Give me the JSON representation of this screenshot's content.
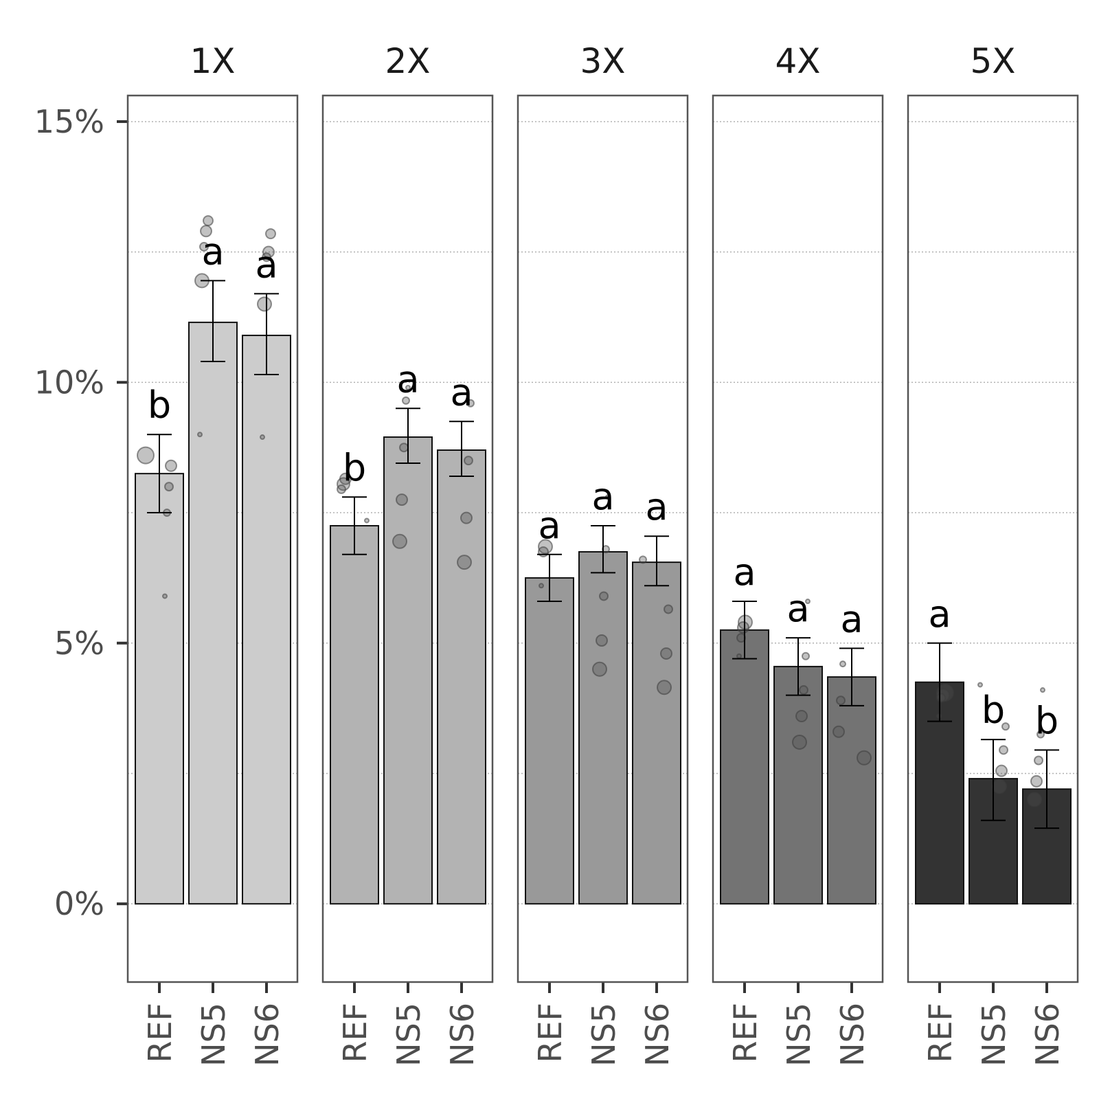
{
  "chart_data": {
    "type": "bar",
    "y_axis": {
      "ylim": [
        -1.5,
        15.5
      ],
      "ticks": [
        0,
        5,
        10,
        15
      ],
      "tick_labels": [
        "0%",
        "5%",
        "10%",
        "15%"
      ],
      "minor_gridlines": [
        2.5,
        7.5,
        12.5
      ]
    },
    "categories": [
      "REF",
      "NS5",
      "NS6"
    ],
    "grid": "horizontal dotted",
    "panels": [
      {
        "title": "1X",
        "fill": "#cccccc",
        "bars": [
          {
            "category": "REF",
            "value": 8.25,
            "err_low": 7.5,
            "err_high": 9.0,
            "letter": "b",
            "points": [
              {
                "y": 8.6,
                "s": 12
              },
              {
                "y": 8.4,
                "s": 8
              },
              {
                "y": 8.0,
                "s": 6
              },
              {
                "y": 7.5,
                "s": 5
              },
              {
                "y": 5.9,
                "s": 3
              }
            ]
          },
          {
            "category": "NS5",
            "value": 11.15,
            "err_low": 10.4,
            "err_high": 11.95,
            "letter": "a",
            "points": [
              {
                "y": 13.1,
                "s": 7
              },
              {
                "y": 12.9,
                "s": 8
              },
              {
                "y": 12.6,
                "s": 6
              },
              {
                "y": 11.95,
                "s": 10
              },
              {
                "y": 9.0,
                "s": 3
              }
            ]
          },
          {
            "category": "NS6",
            "value": 10.9,
            "err_low": 10.15,
            "err_high": 11.7,
            "letter": "a",
            "points": [
              {
                "y": 12.85,
                "s": 7
              },
              {
                "y": 12.5,
                "s": 8
              },
              {
                "y": 12.4,
                "s": 6
              },
              {
                "y": 11.5,
                "s": 10
              },
              {
                "y": 8.95,
                "s": 3
              }
            ]
          }
        ]
      },
      {
        "title": "2X",
        "fill": "#b3b3b3",
        "bars": [
          {
            "category": "REF",
            "value": 7.25,
            "err_low": 6.7,
            "err_high": 7.8,
            "letter": "b",
            "points": [
              {
                "y": 8.15,
                "s": 8
              },
              {
                "y": 8.05,
                "s": 9
              },
              {
                "y": 7.95,
                "s": 6
              },
              {
                "y": 7.35,
                "s": 3
              }
            ]
          },
          {
            "category": "NS5",
            "value": 8.95,
            "err_low": 8.45,
            "err_high": 9.5,
            "letter": "a",
            "points": [
              {
                "y": 9.9,
                "s": 3
              },
              {
                "y": 9.65,
                "s": 5
              },
              {
                "y": 8.75,
                "s": 6
              },
              {
                "y": 7.75,
                "s": 8
              },
              {
                "y": 6.95,
                "s": 10
              }
            ]
          },
          {
            "category": "NS6",
            "value": 8.7,
            "err_low": 8.2,
            "err_high": 9.25,
            "letter": "a",
            "points": [
              {
                "y": 9.6,
                "s": 5
              },
              {
                "y": 8.5,
                "s": 6
              },
              {
                "y": 7.4,
                "s": 8
              },
              {
                "y": 6.55,
                "s": 10
              }
            ]
          }
        ]
      },
      {
        "title": "3X",
        "fill": "#999999",
        "bars": [
          {
            "category": "REF",
            "value": 6.25,
            "err_low": 5.8,
            "err_high": 6.7,
            "letter": "a",
            "points": [
              {
                "y": 6.85,
                "s": 10
              },
              {
                "y": 6.75,
                "s": 7
              },
              {
                "y": 6.1,
                "s": 3
              }
            ]
          },
          {
            "category": "NS5",
            "value": 6.75,
            "err_low": 6.35,
            "err_high": 7.25,
            "letter": "a",
            "points": [
              {
                "y": 7.8,
                "s": 3
              },
              {
                "y": 6.8,
                "s": 5
              },
              {
                "y": 5.9,
                "s": 6
              },
              {
                "y": 5.05,
                "s": 8
              },
              {
                "y": 4.5,
                "s": 10
              }
            ]
          },
          {
            "category": "NS6",
            "value": 6.55,
            "err_low": 6.1,
            "err_high": 7.05,
            "letter": "a",
            "points": [
              {
                "y": 6.6,
                "s": 5
              },
              {
                "y": 5.65,
                "s": 6
              },
              {
                "y": 4.8,
                "s": 8
              },
              {
                "y": 4.15,
                "s": 10
              }
            ]
          }
        ]
      },
      {
        "title": "4X",
        "fill": "#737373",
        "bars": [
          {
            "category": "REF",
            "value": 5.25,
            "err_low": 4.7,
            "err_high": 5.8,
            "letter": "a",
            "points": [
              {
                "y": 5.4,
                "s": 10
              },
              {
                "y": 5.3,
                "s": 8
              },
              {
                "y": 5.1,
                "s": 6
              },
              {
                "y": 4.75,
                "s": 3
              }
            ]
          },
          {
            "category": "NS5",
            "value": 4.55,
            "err_low": 4.0,
            "err_high": 5.1,
            "letter": "a",
            "points": [
              {
                "y": 5.8,
                "s": 3
              },
              {
                "y": 4.75,
                "s": 5
              },
              {
                "y": 4.1,
                "s": 6
              },
              {
                "y": 3.6,
                "s": 8
              },
              {
                "y": 3.1,
                "s": 10
              }
            ]
          },
          {
            "category": "NS6",
            "value": 4.35,
            "err_low": 3.8,
            "err_high": 4.9,
            "letter": "a",
            "points": [
              {
                "y": 4.6,
                "s": 4
              },
              {
                "y": 3.9,
                "s": 6
              },
              {
                "y": 3.3,
                "s": 8
              },
              {
                "y": 2.8,
                "s": 10
              }
            ]
          }
        ]
      },
      {
        "title": "5X",
        "fill": "#333333",
        "bars": [
          {
            "category": "REF",
            "value": 4.25,
            "err_low": 3.5,
            "err_high": 5.0,
            "letter": "a",
            "points": [
              {
                "y": 4.05,
                "s": 12
              },
              {
                "y": 4.0,
                "s": 9
              },
              {
                "y": 3.95,
                "s": 6
              },
              {
                "y": 3.6,
                "s": 3
              }
            ]
          },
          {
            "category": "NS5",
            "value": 2.4,
            "err_low": 1.6,
            "err_high": 3.15,
            "letter": "b",
            "points": [
              {
                "y": 4.2,
                "s": 3
              },
              {
                "y": 3.4,
                "s": 5
              },
              {
                "y": 2.95,
                "s": 6
              },
              {
                "y": 2.55,
                "s": 8
              },
              {
                "y": 2.25,
                "s": 10
              }
            ]
          },
          {
            "category": "NS6",
            "value": 2.2,
            "err_low": 1.45,
            "err_high": 2.95,
            "letter": "b",
            "points": [
              {
                "y": 4.1,
                "s": 3
              },
              {
                "y": 3.25,
                "s": 5
              },
              {
                "y": 2.75,
                "s": 6
              },
              {
                "y": 2.35,
                "s": 8
              },
              {
                "y": 2.0,
                "s": 10
              }
            ]
          }
        ]
      }
    ]
  }
}
